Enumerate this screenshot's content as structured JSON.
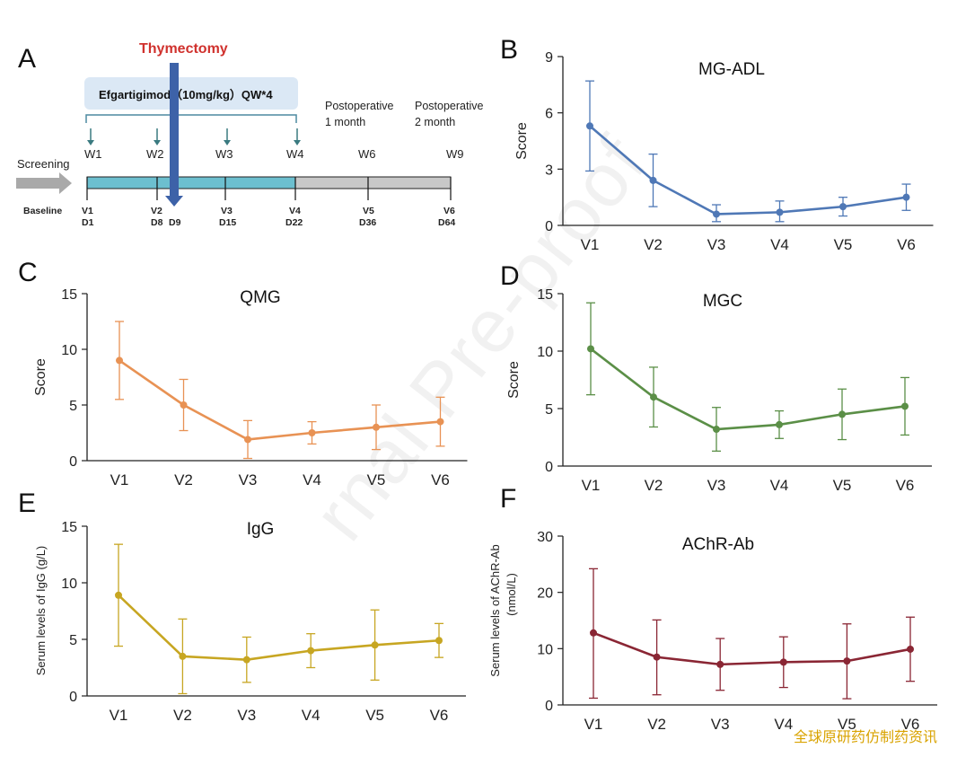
{
  "panel_a": {
    "letter": "A",
    "surgery_label": "Thymectomy",
    "treatment_label": "Efgartigimod（10mg/kg）QW*4",
    "postop1_label": [
      "Postoperative",
      "1 month"
    ],
    "postop2_label": [
      "Postoperative",
      "2 month"
    ],
    "screening_label": "Screening",
    "baseline_label": "Baseline",
    "week_labels": [
      "W1",
      "W2",
      "W3",
      "W4",
      "W6",
      "W9"
    ],
    "visit_labels": [
      "V1",
      "V2",
      "V3",
      "V4",
      "V5",
      "V6"
    ],
    "day_labels": [
      "D1",
      "D8",
      "D15",
      "D22",
      "D36",
      "D64"
    ],
    "surgery_day_label": "D9",
    "colors": {
      "treatment_bar": "#6cbfcf",
      "followup_bar": "#c8c8c8",
      "surgery": "#3d62a8",
      "surgery_text": "#d0312d",
      "arrow": "#3a7a80"
    }
  },
  "chart_data": [
    {
      "id": "B",
      "type": "line",
      "title": "MG-ADL",
      "ylabel": "Score",
      "xlabel": "",
      "categories": [
        "V1",
        "V2",
        "V3",
        "V4",
        "V5",
        "V6"
      ],
      "values": [
        5.3,
        2.4,
        0.6,
        0.7,
        1.0,
        1.5
      ],
      "err_low": [
        2.9,
        1.0,
        0.2,
        0.2,
        0.5,
        0.8
      ],
      "err_high": [
        7.7,
        3.8,
        1.1,
        1.3,
        1.5,
        2.2
      ],
      "ylim": [
        0,
        9
      ],
      "yticks": [
        "0",
        "3",
        "6",
        "9"
      ],
      "color": "#4f78b6"
    },
    {
      "id": "C",
      "type": "line",
      "title": "QMG",
      "ylabel": "Score",
      "xlabel": "",
      "categories": [
        "V1",
        "V2",
        "V3",
        "V4",
        "V5",
        "V6"
      ],
      "values": [
        9.0,
        5.0,
        1.9,
        2.5,
        3.0,
        3.5
      ],
      "err_low": [
        5.5,
        2.7,
        0.2,
        1.5,
        1.0,
        1.3
      ],
      "err_high": [
        12.5,
        7.3,
        3.6,
        3.5,
        5.0,
        5.7
      ],
      "ylim": [
        0,
        15
      ],
      "yticks": [
        "0",
        "5",
        "10",
        "15"
      ],
      "color": "#e89254"
    },
    {
      "id": "D",
      "type": "line",
      "title": "MGC",
      "ylabel": "Score",
      "xlabel": "",
      "categories": [
        "V1",
        "V2",
        "V3",
        "V4",
        "V5",
        "V6"
      ],
      "values": [
        10.2,
        6.0,
        3.2,
        3.6,
        4.5,
        5.2
      ],
      "err_low": [
        6.2,
        3.4,
        1.3,
        2.4,
        2.3,
        2.7
      ],
      "err_high": [
        14.2,
        8.6,
        5.1,
        4.8,
        6.7,
        7.7
      ],
      "ylim": [
        0,
        15
      ],
      "yticks": [
        "0",
        "5",
        "10",
        "15"
      ],
      "color": "#5b8f47"
    },
    {
      "id": "E",
      "type": "line",
      "title": "IgG",
      "ylabel": "Serum levels of IgG (g/L)",
      "xlabel": "",
      "categories": [
        "V1",
        "V2",
        "V3",
        "V4",
        "V5",
        "V6"
      ],
      "values": [
        8.9,
        3.5,
        3.2,
        4.0,
        4.5,
        4.9
      ],
      "err_low": [
        4.4,
        0.2,
        1.2,
        2.5,
        1.4,
        3.4
      ],
      "err_high": [
        13.4,
        6.8,
        5.2,
        5.5,
        7.6,
        6.4
      ],
      "ylim": [
        0,
        15
      ],
      "yticks": [
        "0",
        "5",
        "10",
        "15"
      ],
      "color": "#c7a622"
    },
    {
      "id": "F",
      "type": "line",
      "title": "AChR-Ab",
      "ylabel": "Serum levels of AChR-Ab (nmol/L)",
      "xlabel": "",
      "categories": [
        "V1",
        "V2",
        "V3",
        "V4",
        "V5",
        "V6"
      ],
      "values": [
        12.8,
        8.5,
        7.2,
        7.6,
        7.8,
        9.9
      ],
      "err_low": [
        1.2,
        1.8,
        2.6,
        3.1,
        1.1,
        4.2
      ],
      "err_high": [
        24.2,
        15.1,
        11.8,
        12.1,
        14.4,
        15.6
      ],
      "ylim": [
        0,
        30
      ],
      "yticks": [
        "0",
        "10",
        "20",
        "30"
      ],
      "color": "#8a2634"
    }
  ],
  "watermark": "全球原研药仿制药资讯"
}
